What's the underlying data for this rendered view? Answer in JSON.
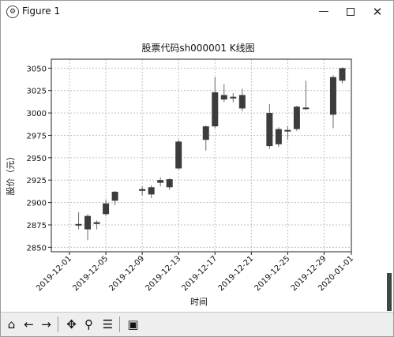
{
  "window": {
    "title": "Figure 1",
    "minimize_glyph": "—",
    "close_glyph": "✕"
  },
  "toolbar": {
    "buttons": [
      {
        "icon": "home-icon",
        "glyph": "⌂"
      },
      {
        "icon": "back-arrow-icon",
        "glyph": "←"
      },
      {
        "icon": "forward-arrow-icon",
        "glyph": "→"
      },
      {
        "icon": "pan-icon",
        "glyph": "✥"
      },
      {
        "icon": "zoom-icon",
        "glyph": "⚲"
      },
      {
        "icon": "configure-subplots-icon",
        "glyph": "☰"
      },
      {
        "icon": "save-icon",
        "glyph": "▣"
      }
    ]
  },
  "chart_data": {
    "type": "candlestick",
    "title": "股票代码sh000001 K线图",
    "xlabel": "时间",
    "ylabel": "股价（元）",
    "ylim": [
      2845,
      3060
    ],
    "xlim": [
      "2019-11-29",
      "2020-01-01"
    ],
    "yticks": [
      2850,
      2875,
      2900,
      2925,
      2950,
      2975,
      3000,
      3025,
      3050
    ],
    "xticks": [
      "2019-12-01",
      "2019-12-05",
      "2019-12-09",
      "2019-12-13",
      "2019-12-17",
      "2019-12-21",
      "2019-12-25",
      "2019-12-29",
      "2020-01-01"
    ],
    "grid": true,
    "colors": {
      "candle": "#3c3c3c",
      "grid": "#c0c0c0"
    },
    "candles": [
      {
        "date": "2019-12-02",
        "open": 2875,
        "close": 2876,
        "high": 2889,
        "low": 2870
      },
      {
        "date": "2019-12-03",
        "open": 2885,
        "close": 2870,
        "high": 2887,
        "low": 2858
      },
      {
        "date": "2019-12-04",
        "open": 2876,
        "close": 2878,
        "high": 2880,
        "low": 2870
      },
      {
        "date": "2019-12-05",
        "open": 2887,
        "close": 2899,
        "high": 2903,
        "low": 2885
      },
      {
        "date": "2019-12-06",
        "open": 2902,
        "close": 2912,
        "high": 2913,
        "low": 2897
      },
      {
        "date": "2019-12-09",
        "open": 2913,
        "close": 2915,
        "high": 2918,
        "low": 2908
      },
      {
        "date": "2019-12-10",
        "open": 2909,
        "close": 2917,
        "high": 2919,
        "low": 2905
      },
      {
        "date": "2019-12-11",
        "open": 2922,
        "close": 2925,
        "high": 2928,
        "low": 2918
      },
      {
        "date": "2019-12-12",
        "open": 2926,
        "close": 2917,
        "high": 2927,
        "low": 2914
      },
      {
        "date": "2019-12-13",
        "open": 2938,
        "close": 2968,
        "high": 2970,
        "low": 2937
      },
      {
        "date": "2019-12-16",
        "open": 2970,
        "close": 2985,
        "high": 2986,
        "low": 2958
      },
      {
        "date": "2019-12-17",
        "open": 2985,
        "close": 3023,
        "high": 3040,
        "low": 2983
      },
      {
        "date": "2019-12-18",
        "open": 3020,
        "close": 3015,
        "high": 3032,
        "low": 3012
      },
      {
        "date": "2019-12-19",
        "open": 3018,
        "close": 3017,
        "high": 3022,
        "low": 3012
      },
      {
        "date": "2019-12-20",
        "open": 3020,
        "close": 3005,
        "high": 3027,
        "low": 3002
      },
      {
        "date": "2019-12-23",
        "open": 3000,
        "close": 2963,
        "high": 3010,
        "low": 2960
      },
      {
        "date": "2019-12-24",
        "open": 2965,
        "close": 2982,
        "high": 2984,
        "low": 2962
      },
      {
        "date": "2019-12-25",
        "open": 2980,
        "close": 2981,
        "high": 2985,
        "low": 2970
      },
      {
        "date": "2019-12-26",
        "open": 2982,
        "close": 3007,
        "high": 3008,
        "low": 2980
      },
      {
        "date": "2019-12-27",
        "open": 3005,
        "close": 3006,
        "high": 3036,
        "low": 3003
      },
      {
        "date": "2019-12-30",
        "open": 2998,
        "close": 3040,
        "high": 3042,
        "low": 2983
      },
      {
        "date": "2019-12-31",
        "open": 3036,
        "close": 3050,
        "high": 3051,
        "low": 3033
      }
    ]
  }
}
